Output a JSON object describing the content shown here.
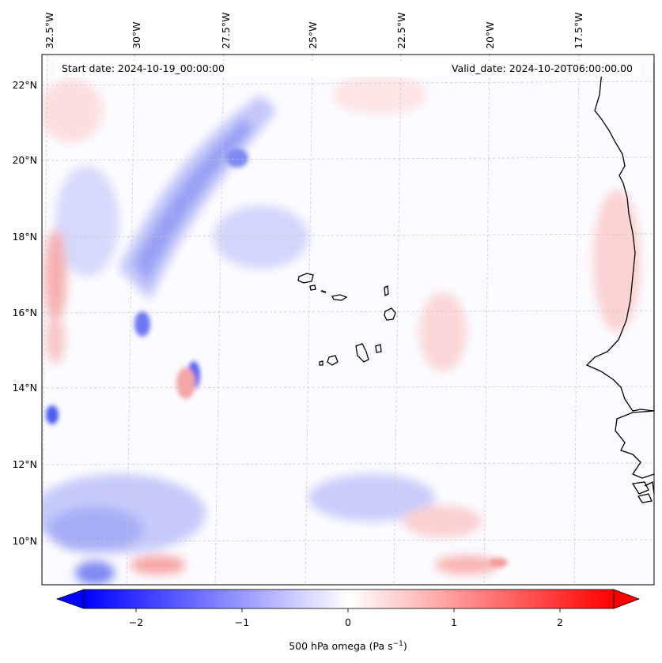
{
  "header": {
    "start_date": "Start date: 2024-10-19_00:00:00",
    "valid_date": "Valid_date: 2024-10-20T06:00:00.00"
  },
  "top_labels": [
    "32.5°W",
    "30°W",
    "27.5°W",
    "25°W",
    "22.5°W",
    "20°W",
    "17.5°W"
  ],
  "left_labels": [
    "22°N",
    "20°N",
    "18°N",
    "16°N",
    "14°N",
    "12°N",
    "10°N"
  ],
  "colorbar": {
    "ticks": [
      "−2",
      "−1",
      "0",
      "1",
      "2"
    ],
    "label": "500 hPa omega (Pa s",
    "label_exp": "−1",
    "label_close": ")",
    "colors": {
      "negative": "#0000ff",
      "zero": "#ffffff",
      "positive": "#ff0000"
    }
  },
  "map": {
    "background": "#fbfbff",
    "coastline_color": "#000000",
    "gridline_color": "#c8c8c8"
  }
}
